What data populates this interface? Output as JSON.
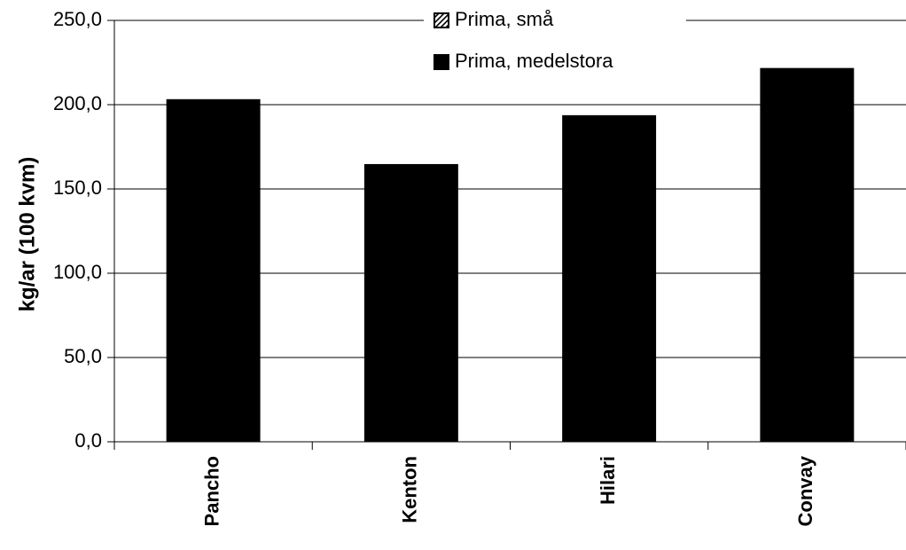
{
  "chart_data": {
    "type": "bar",
    "title": "",
    "xlabel": "",
    "ylabel": "kg/ar (100 kvm)",
    "categories": [
      "Pancho",
      "Kenton",
      "Hilari",
      "Convay"
    ],
    "series": [
      {
        "name": "Prima, små",
        "values": [
          0,
          0,
          0,
          0
        ],
        "color": "#000000",
        "pattern": "hatched"
      },
      {
        "name": "Prima, medelstora",
        "values": [
          203,
          164.5,
          193.5,
          221.5
        ],
        "color": "#000000",
        "pattern": "solid"
      }
    ],
    "ylim": [
      0,
      250
    ],
    "yticks": [
      0,
      50,
      100,
      150,
      200,
      250
    ],
    "ytick_labels": [
      "0,0",
      "50,0",
      "100,0",
      "150,0",
      "200,0",
      "250,0"
    ],
    "grid": true,
    "legend_position": "top-center"
  }
}
